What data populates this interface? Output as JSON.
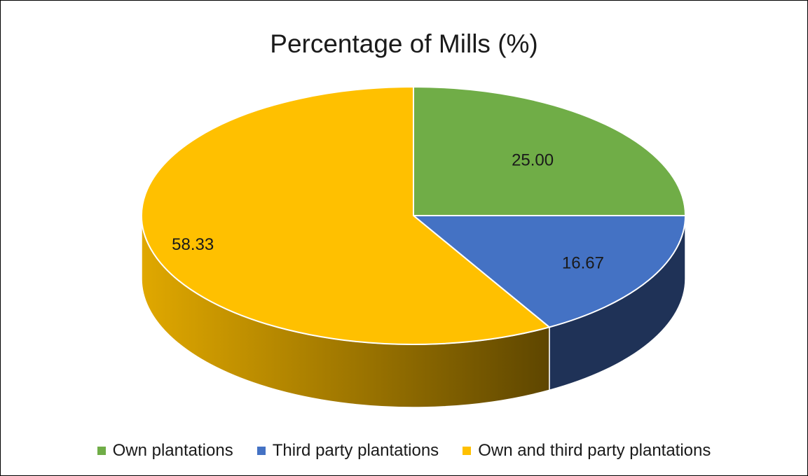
{
  "chart_data": {
    "type": "pie",
    "title": "Percentage of Mills (%)",
    "slices": [
      {
        "label": "Own plantations",
        "value": 25.0,
        "value_label": "25.00",
        "color": "#70AD47",
        "side_color": "#3f6a26"
      },
      {
        "label": "Third party plantations",
        "value": 16.67,
        "value_label": "16.67",
        "color": "#4472C4",
        "side_color": "#1f3257"
      },
      {
        "label": "Own and third party plantations",
        "value": 58.33,
        "value_label": "58.33",
        "color": "#FFC000",
        "side_color": "#c99600"
      }
    ],
    "legend_position": "bottom",
    "style": "3d"
  }
}
